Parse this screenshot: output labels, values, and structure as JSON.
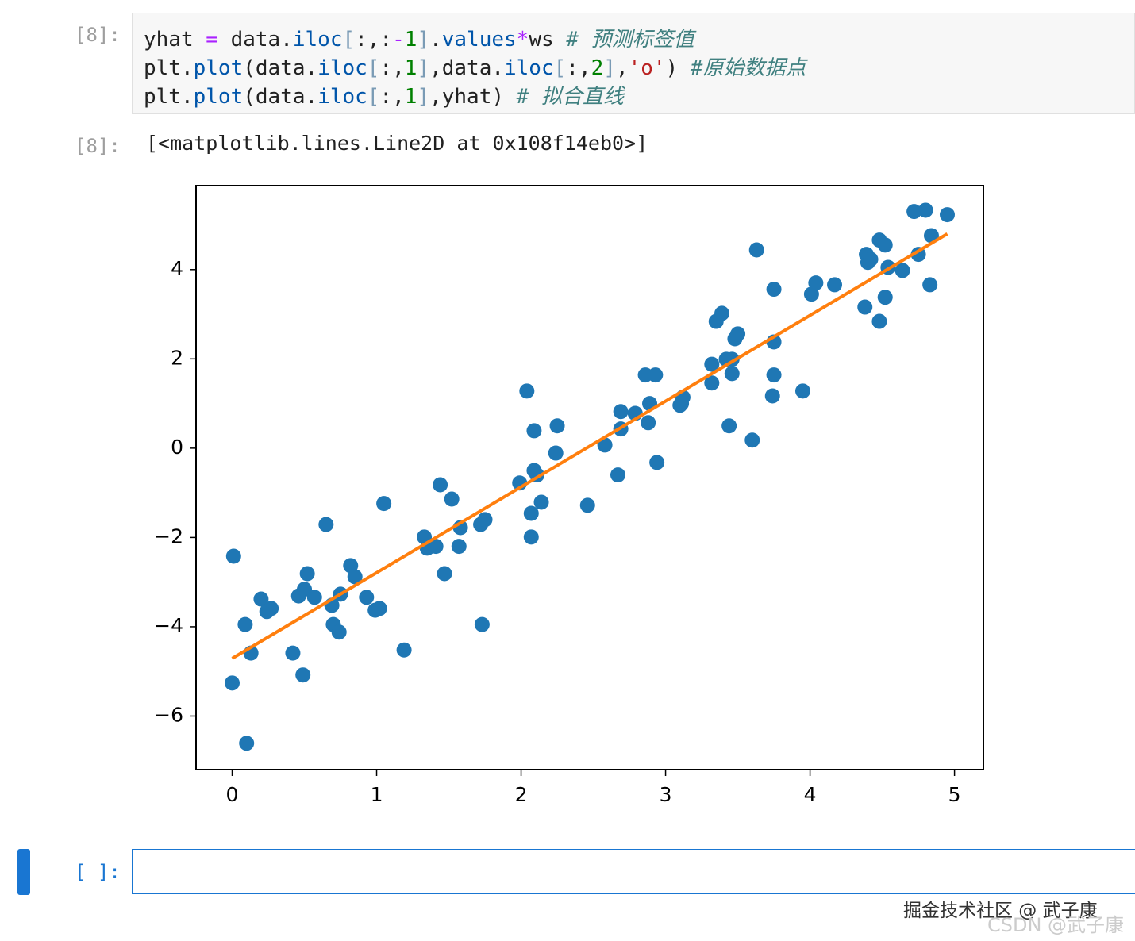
{
  "code_cell": {
    "prompt": "[8]:",
    "lines": [
      {
        "code": "yhat = data.iloc[:,:-1].values*ws ",
        "comment": "# 预测标签值"
      },
      {
        "code": "plt.plot(data.iloc[:,1],data.iloc[:,2],'o') ",
        "comment": "#原始数据点"
      },
      {
        "code": "plt.plot(data.iloc[:,1],yhat) ",
        "comment": "# 拟合直线"
      }
    ]
  },
  "output": {
    "prompt": "[8]:",
    "text": "[<matplotlib.lines.Line2D at 0x108f14eb0>]"
  },
  "chart_data": {
    "type": "line",
    "xlim": [
      -0.25,
      5.2
    ],
    "ylim": [
      -7.2,
      5.88
    ],
    "xticks": [
      0,
      1,
      2,
      3,
      4,
      5
    ],
    "yticks": [
      {
        "value": -6,
        "label": "−6"
      },
      {
        "value": -4,
        "label": "−4"
      },
      {
        "value": -2,
        "label": "−2"
      },
      0,
      2,
      4
    ],
    "series": [
      {
        "color": "#1f77b4",
        "marker": "o",
        "linestyle": "none",
        "x": [
          0.01,
          0,
          0.1,
          0.09,
          0.13,
          0.2,
          0.24,
          0.27,
          0.42,
          0.46,
          0.49,
          0.52,
          0.5,
          0.57,
          0.65,
          0.69,
          0.7,
          0.74,
          0.75,
          0.82,
          0.85,
          0.93,
          0.99,
          1.02,
          1.05,
          1.19,
          1.33,
          1.35,
          1.41,
          1.44,
          1.47,
          1.52,
          1.57,
          1.58,
          1.72,
          1.75,
          1.73,
          1.99,
          2.04,
          2.09,
          2.09,
          2.07,
          2.07,
          2.11,
          2.14,
          2.25,
          2.24,
          2.46,
          2.58,
          2.67,
          2.69,
          2.69,
          2.79,
          2.86,
          2.93,
          2.89,
          2.88,
          2.94,
          3.1,
          3.11,
          3.12,
          3.32,
          3.32,
          3.35,
          3.39,
          3.42,
          3.46,
          3.46,
          3.44,
          3.48,
          3.5,
          3.6,
          3.63,
          3.75,
          3.75,
          3.75,
          3.74,
          3.95,
          4.01,
          4.04,
          4.17,
          4.38,
          4.39,
          4.4,
          4.42,
          4.48,
          4.48,
          4.52,
          4.52,
          4.54,
          4.64,
          4.72,
          4.75,
          4.8,
          4.83,
          4.84,
          4.95
        ],
        "values": [
          -2.42,
          -5.26,
          -6.61,
          -3.95,
          -4.59,
          -3.38,
          -3.66,
          -3.59,
          -4.59,
          -3.31,
          -5.08,
          -2.81,
          -3.16,
          -3.34,
          -1.71,
          -3.52,
          -3.95,
          -4.12,
          -3.27,
          -2.63,
          -2.88,
          -3.34,
          -3.63,
          -3.59,
          -1.24,
          -4.52,
          -1.99,
          -2.24,
          -2.2,
          -0.82,
          -2.81,
          -1.14,
          -2.2,
          -1.78,
          -1.71,
          -1.6,
          -3.95,
          -0.78,
          1.28,
          0.39,
          -0.5,
          -1.46,
          -1.99,
          -0.6,
          -1.21,
          0.5,
          -0.11,
          -1.28,
          0.07,
          -0.6,
          0.43,
          0.82,
          0.78,
          1.64,
          1.64,
          1.0,
          0.57,
          -0.32,
          0.96,
          1.0,
          1.14,
          1.88,
          1.46,
          2.84,
          3.02,
          1.99,
          1.99,
          1.67,
          0.5,
          2.45,
          2.56,
          0.18,
          4.44,
          3.56,
          2.38,
          1.64,
          1.17,
          1.28,
          3.45,
          3.7,
          3.66,
          3.16,
          4.34,
          4.16,
          4.23,
          2.84,
          4.66,
          3.38,
          4.55,
          4.05,
          3.98,
          5.3,
          4.34,
          5.33,
          3.66,
          4.76,
          5.23
        ]
      },
      {
        "color": "#ff7f0e",
        "x": [
          0,
          4.95
        ],
        "values": [
          -4.71,
          4.8
        ]
      }
    ]
  },
  "empty_cell": {
    "prompt": "[ ]:"
  },
  "watermark": [
    "掘金技术社区 @ 武子康",
    "CSDN @武子康"
  ]
}
